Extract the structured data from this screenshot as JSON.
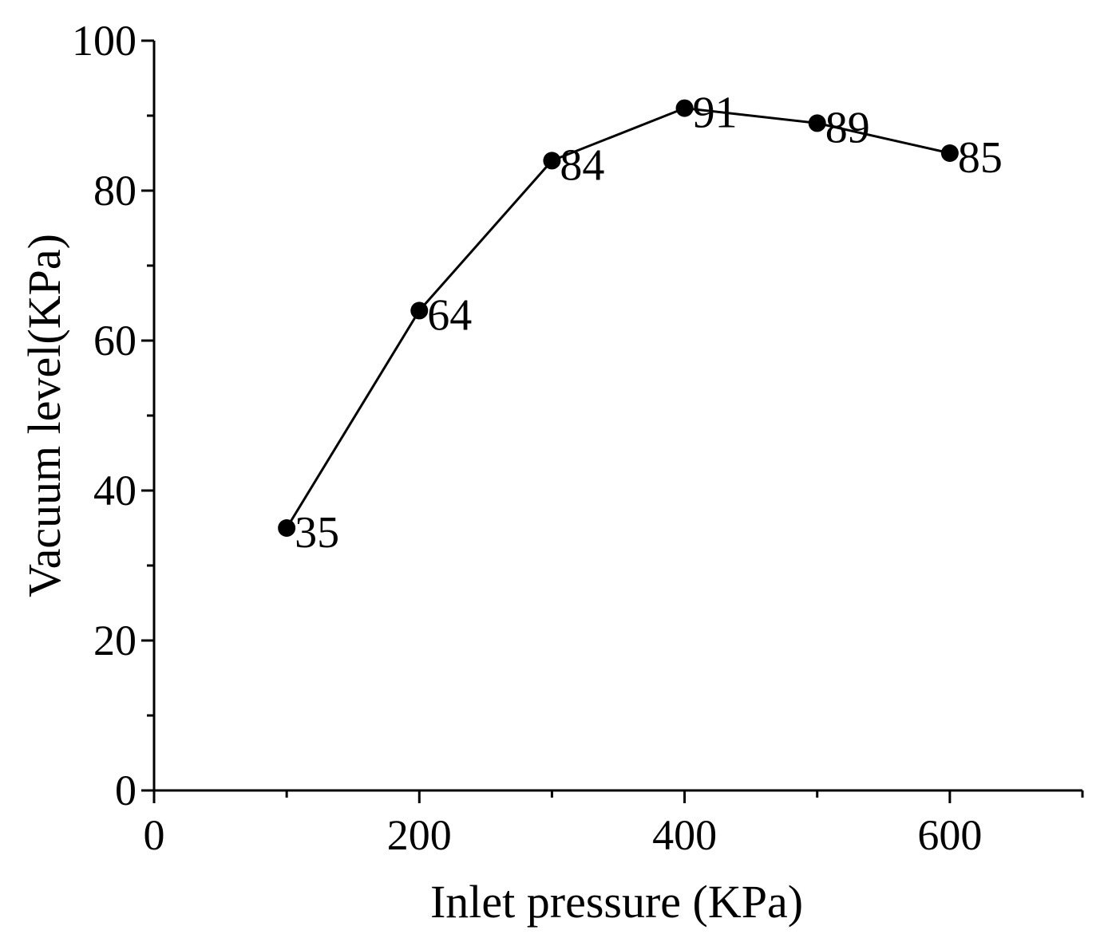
{
  "chart_data": {
    "type": "line",
    "title": "",
    "xlabel": "Inlet pressure (KPa)",
    "ylabel": "Vacuum level(KPa)",
    "xlim": [
      0,
      700
    ],
    "ylim": [
      0,
      100
    ],
    "x_ticks": [
      "0",
      "200",
      "400",
      "600"
    ],
    "y_ticks": [
      "0",
      "20",
      "40",
      "60",
      "80",
      "100"
    ],
    "grid": false,
    "legend": "none",
    "series": [
      {
        "x": [
          100,
          200,
          300,
          400,
          500,
          600
        ],
        "y": [
          35,
          64,
          84,
          91,
          89,
          85
        ],
        "data_labels": [
          "35",
          "64",
          "84",
          "91",
          "89",
          "85"
        ],
        "color": "#000000",
        "marker": "circle"
      }
    ]
  }
}
